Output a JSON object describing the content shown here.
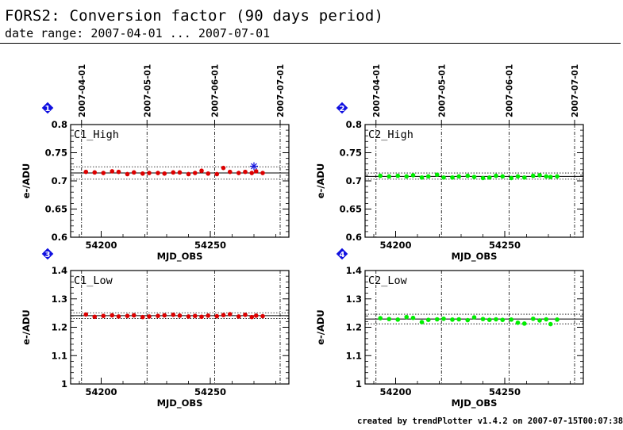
{
  "header": {
    "title": "FORS2: Conversion factor (90 days period)",
    "subtitle": "date range: 2007-04-01 ... 2007-07-01"
  },
  "footer": {
    "credit": "created by trendPlotter v1.4.2 on 2007-07-15T00:07:38"
  },
  "colors": {
    "panel1_points": "#dd0000",
    "panel2_points": "#00ee00",
    "panel3_points": "#dd0000",
    "panel4_points": "#00ee00",
    "outlier": "#1a1adf",
    "badge": "#1010e0"
  },
  "chart_data": [
    {
      "type": "scatter",
      "panel_number": "1",
      "panel_label": "C1_High",
      "xlabel": "MJD_OBS",
      "ylabel": "e-/ADU",
      "xlim": [
        54186,
        54286
      ],
      "ylim": [
        0.6,
        0.8
      ],
      "xticks": [
        54200,
        54250
      ],
      "yticks": [
        0.6,
        0.65,
        0.7,
        0.75,
        0.8
      ],
      "ytick_labels": [
        "0.6",
        "0.65",
        "0.7",
        "0.75",
        "0.8"
      ],
      "date_ticks": [
        {
          "mjd": 54191,
          "label": "2007-04-01"
        },
        {
          "mjd": 54221,
          "label": "2007-05-01"
        },
        {
          "mjd": 54252,
          "label": "2007-06-01"
        },
        {
          "mjd": 54282,
          "label": "2007-07-01"
        }
      ],
      "mean": 0.714,
      "band": [
        0.703,
        0.725
      ],
      "x": [
        54193,
        54197,
        54201,
        54205,
        54208,
        54212,
        54215,
        54219,
        54222,
        54226,
        54229,
        54233,
        54236,
        54240,
        54243,
        54246,
        54249,
        54253,
        54256,
        54259,
        54263,
        54266,
        54269,
        54271,
        54274
      ],
      "y": [
        0.716,
        0.715,
        0.714,
        0.717,
        0.716,
        0.712,
        0.715,
        0.713,
        0.714,
        0.714,
        0.713,
        0.715,
        0.715,
        0.712,
        0.714,
        0.718,
        0.713,
        0.712,
        0.723,
        0.716,
        0.714,
        0.716,
        0.714,
        0.717,
        0.714
      ],
      "outliers": [
        {
          "x": 54270,
          "y": 0.726
        }
      ]
    },
    {
      "type": "scatter",
      "panel_number": "2",
      "panel_label": "C2_High",
      "xlabel": "MJD_OBS",
      "ylabel": "e-/ADU",
      "xlim": [
        54186,
        54286
      ],
      "ylim": [
        0.6,
        0.8
      ],
      "xticks": [
        54200,
        54250
      ],
      "yticks": [
        0.6,
        0.65,
        0.7,
        0.75,
        0.8
      ],
      "ytick_labels": [
        "0.6",
        "0.65",
        "0.7",
        "0.75",
        "0.8"
      ],
      "date_ticks": [
        {
          "mjd": 54191,
          "label": "2007-04-01"
        },
        {
          "mjd": 54221,
          "label": "2007-05-01"
        },
        {
          "mjd": 54252,
          "label": "2007-06-01"
        },
        {
          "mjd": 54282,
          "label": "2007-07-01"
        }
      ],
      "mean": 0.708,
      "band": [
        0.703,
        0.714
      ],
      "x": [
        54193,
        54197,
        54201,
        54205,
        54208,
        54212,
        54215,
        54219,
        54222,
        54226,
        54229,
        54233,
        54236,
        54240,
        54243,
        54246,
        54249,
        54253,
        54256,
        54259,
        54263,
        54266,
        54269,
        54271,
        54274
      ],
      "y": [
        0.709,
        0.708,
        0.709,
        0.708,
        0.71,
        0.706,
        0.708,
        0.711,
        0.706,
        0.706,
        0.708,
        0.709,
        0.707,
        0.705,
        0.706,
        0.709,
        0.708,
        0.705,
        0.708,
        0.706,
        0.709,
        0.71,
        0.708,
        0.707,
        0.708
      ],
      "outliers": []
    },
    {
      "type": "scatter",
      "panel_number": "3",
      "panel_label": "C1_Low",
      "xlabel": "MJD_OBS",
      "ylabel": "e-/ADU",
      "xlim": [
        54186,
        54286
      ],
      "ylim": [
        1.0,
        1.4
      ],
      "xticks": [
        54200,
        54250
      ],
      "yticks": [
        1.0,
        1.1,
        1.2,
        1.3,
        1.4
      ],
      "ytick_labels": [
        "1",
        "1.1",
        "1.2",
        "1.3",
        "1.4"
      ],
      "date_ticks": [
        {
          "mjd": 54191,
          "label": "2007-04-01"
        },
        {
          "mjd": 54221,
          "label": "2007-05-01"
        },
        {
          "mjd": 54252,
          "label": "2007-06-01"
        },
        {
          "mjd": 54282,
          "label": "2007-07-01"
        }
      ],
      "mean": 1.241,
      "band": [
        1.231,
        1.251
      ],
      "x": [
        54193,
        54197,
        54201,
        54205,
        54208,
        54212,
        54215,
        54219,
        54222,
        54226,
        54229,
        54233,
        54236,
        54240,
        54243,
        54246,
        54249,
        54253,
        54256,
        54259,
        54263,
        54266,
        54269,
        54271,
        54274
      ],
      "y": [
        1.245,
        1.237,
        1.24,
        1.242,
        1.238,
        1.24,
        1.242,
        1.236,
        1.238,
        1.24,
        1.242,
        1.244,
        1.241,
        1.238,
        1.24,
        1.237,
        1.241,
        1.239,
        1.243,
        1.246,
        1.238,
        1.244,
        1.236,
        1.241,
        1.239
      ],
      "outliers": []
    },
    {
      "type": "scatter",
      "panel_number": "4",
      "panel_label": "C2_Low",
      "xlabel": "MJD_OBS",
      "ylabel": "e-/ADU",
      "xlim": [
        54186,
        54286
      ],
      "ylim": [
        1.0,
        1.4
      ],
      "xticks": [
        54200,
        54250
      ],
      "yticks": [
        1.0,
        1.1,
        1.2,
        1.3,
        1.4
      ],
      "ytick_labels": [
        "1",
        "1.1",
        "1.2",
        "1.3",
        "1.4"
      ],
      "date_ticks": [
        {
          "mjd": 54191,
          "label": "2007-04-01"
        },
        {
          "mjd": 54221,
          "label": "2007-05-01"
        },
        {
          "mjd": 54252,
          "label": "2007-06-01"
        },
        {
          "mjd": 54282,
          "label": "2007-07-01"
        }
      ],
      "mean": 1.229,
      "band": [
        1.212,
        1.246
      ],
      "x": [
        54193,
        54197,
        54201,
        54205,
        54208,
        54212,
        54215,
        54219,
        54222,
        54226,
        54229,
        54233,
        54236,
        54240,
        54243,
        54246,
        54249,
        54253,
        54256,
        54259,
        54263,
        54266,
        54269,
        54271,
        54274
      ],
      "y": [
        1.232,
        1.229,
        1.227,
        1.236,
        1.233,
        1.218,
        1.226,
        1.228,
        1.23,
        1.227,
        1.228,
        1.225,
        1.235,
        1.229,
        1.226,
        1.228,
        1.226,
        1.227,
        1.216,
        1.213,
        1.23,
        1.224,
        1.228,
        1.211,
        1.227
      ],
      "outliers": []
    }
  ]
}
